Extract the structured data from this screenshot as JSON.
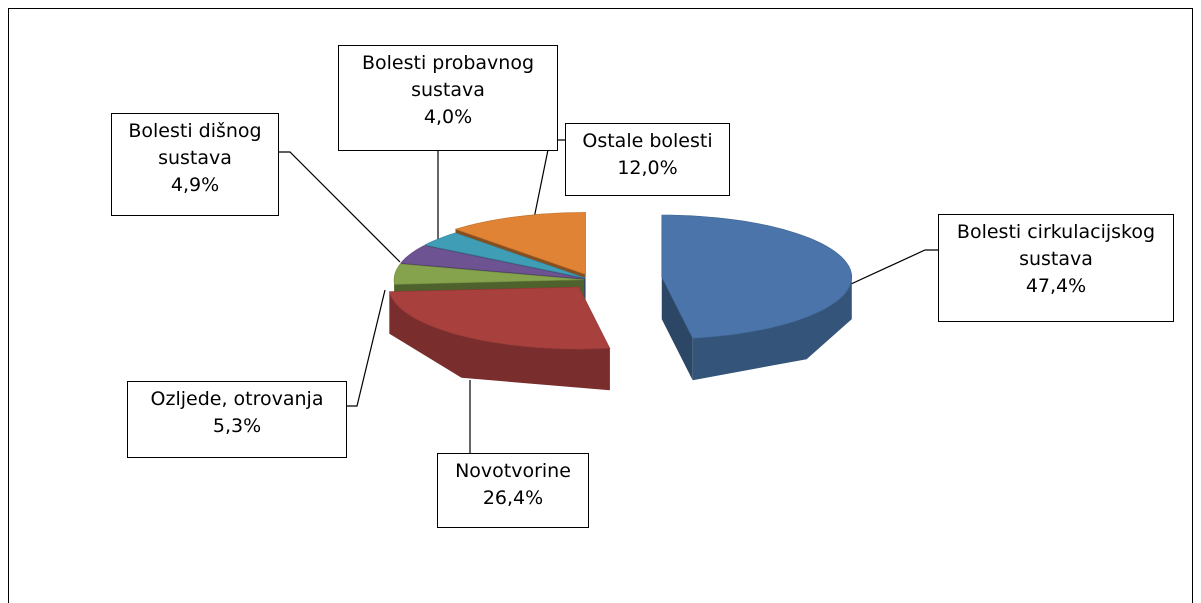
{
  "chart_data": {
    "type": "pie3d",
    "categories": [
      "Bolesti cirkulacijskog sustava",
      "Novotvorine",
      "Ozljede, otrovanja",
      "Bolesti dišnog sustava",
      "Bolesti probavnog sustava",
      "Ostale bolesti"
    ],
    "values": [
      47.4,
      26.4,
      5.3,
      4.9,
      4.0,
      12.0
    ],
    "value_labels": [
      "47,4%",
      "26,4%",
      "5,3%",
      "4,9%",
      "4,0%",
      "12,0%"
    ],
    "colors": [
      "#4a74aa",
      "#a8403e",
      "#84a34c",
      "#6e5393",
      "#3f9db5",
      "#e08334"
    ]
  }
}
